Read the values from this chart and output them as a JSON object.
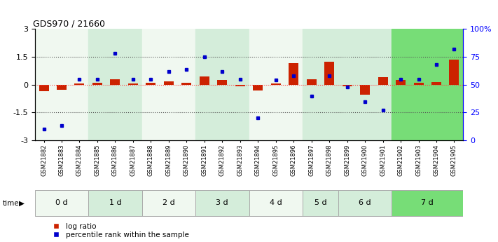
{
  "title": "GDS970 / 21660",
  "samples": [
    "GSM21882",
    "GSM21883",
    "GSM21884",
    "GSM21885",
    "GSM21886",
    "GSM21887",
    "GSM21888",
    "GSM21889",
    "GSM21890",
    "GSM21891",
    "GSM21892",
    "GSM21893",
    "GSM21894",
    "GSM21895",
    "GSM21896",
    "GSM21897",
    "GSM21898",
    "GSM21899",
    "GSM21900",
    "GSM21901",
    "GSM21902",
    "GSM21903",
    "GSM21904",
    "GSM21905"
  ],
  "log_ratio": [
    -0.35,
    -0.28,
    0.08,
    0.1,
    0.3,
    0.06,
    0.1,
    0.18,
    0.1,
    0.45,
    0.25,
    -0.07,
    -0.3,
    0.05,
    1.18,
    0.28,
    1.22,
    -0.07,
    -0.52,
    0.4,
    0.25,
    0.1,
    0.16,
    1.35
  ],
  "percentile": [
    10,
    13,
    55,
    55,
    78,
    55,
    55,
    62,
    64,
    75,
    62,
    55,
    20,
    54,
    58,
    40,
    58,
    48,
    35,
    27,
    55,
    55,
    68,
    82
  ],
  "time_groups": [
    {
      "label": "0 d",
      "start": 0,
      "end": 3
    },
    {
      "label": "1 d",
      "start": 3,
      "end": 6
    },
    {
      "label": "2 d",
      "start": 6,
      "end": 9
    },
    {
      "label": "3 d",
      "start": 9,
      "end": 12
    },
    {
      "label": "4 d",
      "start": 12,
      "end": 15
    },
    {
      "label": "5 d",
      "start": 15,
      "end": 17
    },
    {
      "label": "6 d",
      "start": 17,
      "end": 20
    },
    {
      "label": "7 d",
      "start": 20,
      "end": 24
    }
  ],
  "group_colors": [
    "#f0f8f0",
    "#d4edda",
    "#f0f8f0",
    "#d4edda",
    "#f0f8f0",
    "#d4edda",
    "#d4edda",
    "#77dd77"
  ],
  "bar_color": "#cc2200",
  "dot_color": "#0000cc",
  "ylim_left": [
    -3,
    3
  ],
  "ylim_right": [
    0,
    100
  ],
  "yticks_left": [
    -3,
    -1.5,
    0,
    1.5,
    3
  ],
  "yticks_right": [
    0,
    25,
    50,
    75,
    100
  ],
  "ytick_labels_right": [
    "0",
    "25",
    "50",
    "75",
    "100%"
  ],
  "hline_y": [
    1.5,
    -1.5
  ],
  "zeroline_color": "#ff4444",
  "dotted_color": "#555555",
  "background_color": "#ffffff"
}
